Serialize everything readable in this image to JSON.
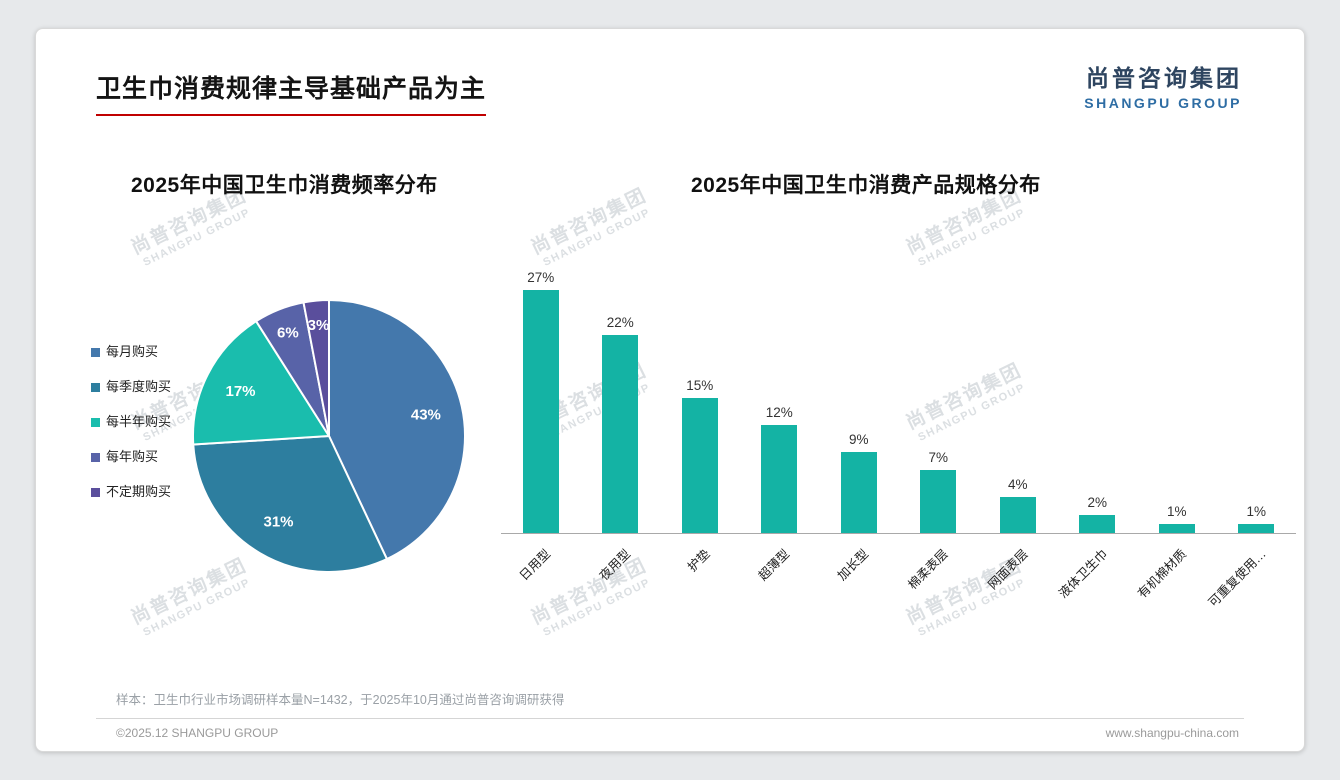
{
  "page": {
    "title": "卫生巾消费规律主导基础产品为主",
    "logo": {
      "cn": "尚普咨询集团",
      "en": "SHANGPU GROUP"
    },
    "watermark": {
      "cn": "尚普咨询集团",
      "en": "SHANGPU GROUP"
    },
    "footnote": "样本：卫生巾行业市场调研样本量N=1432，于2025年10月通过尚普咨询调研获得",
    "footer": {
      "copyright": "©2025.12 SHANGPU GROUP",
      "website": "www.shangpu-china.com"
    }
  },
  "chart_data": [
    {
      "type": "pie",
      "title": "2025年中国卫生巾消费频率分布",
      "labels": [
        "每月购买",
        "每季度购买",
        "每半年购买",
        "每年购买",
        "不定期购买"
      ],
      "values": [
        43,
        31,
        17,
        6,
        3
      ],
      "value_labels": [
        "43%",
        "31%",
        "17%",
        "6%",
        "3%"
      ],
      "colors": [
        "#4478ac",
        "#2d7e9f",
        "#1abdad",
        "#5863a8",
        "#5a4e9c"
      ],
      "legend_position": "left",
      "start_angle_deg": 0,
      "direction": "clockwise"
    },
    {
      "type": "bar",
      "title": "2025年中国卫生巾消费产品规格分布",
      "categories": [
        "日用型",
        "夜用型",
        "护垫",
        "超薄型",
        "加长型",
        "棉柔表层",
        "网面表层",
        "液体卫生巾",
        "有机棉材质",
        "可重复使用…"
      ],
      "values": [
        27,
        22,
        15,
        12,
        9,
        7,
        4,
        2,
        1,
        1
      ],
      "value_labels": [
        "27%",
        "22%",
        "15%",
        "12%",
        "9%",
        "7%",
        "4%",
        "2%",
        "1%",
        "1%"
      ],
      "bar_color": "#14b3a4",
      "ylim": [
        0,
        30
      ],
      "grid": false,
      "x_label_rotation_deg": 45
    }
  ]
}
